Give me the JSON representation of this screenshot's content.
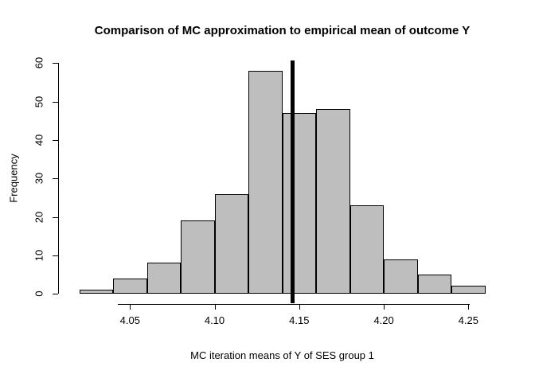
{
  "chart_data": {
    "type": "bar",
    "subtype": "histogram",
    "title": "Comparison of MC approximation to empirical mean of outcome Y",
    "xlabel": "MC iteration means of Y of SES group 1",
    "ylabel": "Frequency",
    "bin_edges": [
      4.02,
      4.04,
      4.06,
      4.08,
      4.1,
      4.12,
      4.14,
      4.16,
      4.18,
      4.2,
      4.22,
      4.24,
      4.26
    ],
    "counts": [
      1,
      4,
      8,
      19,
      26,
      58,
      47,
      48,
      23,
      9,
      5,
      2
    ],
    "x_tick_values": [
      4.05,
      4.1,
      4.15,
      4.2,
      4.25
    ],
    "x_tick_labels": [
      "4.05",
      "4.10",
      "4.15",
      "4.20",
      "4.25"
    ],
    "y_tick_values": [
      0,
      10,
      20,
      30,
      40,
      50,
      60
    ],
    "y_tick_labels": [
      "0",
      "10",
      "20",
      "30",
      "40",
      "50",
      "60"
    ],
    "xlim": [
      4.02,
      4.26
    ],
    "ylim": [
      0,
      60
    ],
    "reference_line_x": 4.146,
    "grid": false,
    "legend": "none",
    "colors": {
      "bar_fill": "#bebebe",
      "bar_border": "#000000",
      "reference_line": "#000000",
      "text": "#000000",
      "background": "#ffffff"
    }
  }
}
